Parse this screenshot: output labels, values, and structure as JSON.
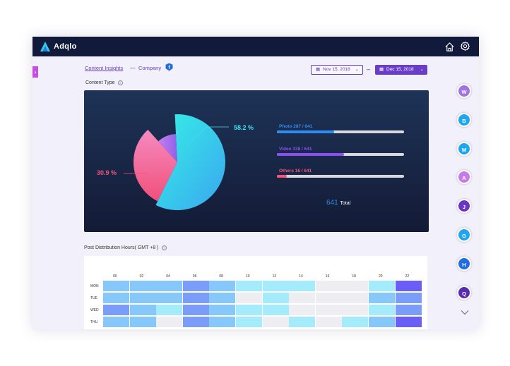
{
  "app": {
    "brand": "Adqlo"
  },
  "tabs": {
    "insights": "Content Insights",
    "separator": "—",
    "company": "Company"
  },
  "date_range": {
    "start": "Nov 15, 2018",
    "separator": "–",
    "end": "Dec 15, 2018"
  },
  "content_type": {
    "title": "Content Type",
    "total_value": "641",
    "total_label": "Total"
  },
  "chart_data": {
    "type": "pie",
    "slices": [
      {
        "label": "Photo",
        "value": 58.2,
        "color": "#2fe6e6"
      },
      {
        "label": "Others",
        "value": 30.9,
        "color": "#f2557b"
      },
      {
        "label": "Video",
        "value": 10.9,
        "color": "#9b6fe8"
      }
    ],
    "labels": {
      "large": "58.2 %",
      "medium": "30.9 %"
    },
    "bars": [
      {
        "label": "Photo 287 / 641",
        "fraction": 0.45,
        "color": "#2d8df0"
      },
      {
        "label": "Video 338 / 641",
        "fraction": 0.53,
        "color": "#8a4ff0"
      },
      {
        "label": "Others 16 / 641",
        "fraction": 0.08,
        "color": "#f2557b"
      }
    ]
  },
  "post_distribution": {
    "title": "Post Distribution Hours( GMT +8 )",
    "hours": [
      "00",
      "02",
      "04",
      "06",
      "08",
      "10",
      "12",
      "14",
      "16",
      "18",
      "20",
      "22"
    ],
    "days": [
      "MON",
      "TUE",
      "WED",
      "THU"
    ],
    "intensity": [
      [
        2,
        2,
        2,
        3,
        2,
        1,
        1,
        1,
        0,
        0,
        1,
        4
      ],
      [
        2,
        2,
        2,
        3,
        2,
        0,
        1,
        0,
        0,
        0,
        2,
        3
      ],
      [
        3,
        2,
        1,
        3,
        2,
        1,
        1,
        0,
        0,
        0,
        1,
        3
      ],
      [
        2,
        2,
        0,
        3,
        2,
        1,
        0,
        1,
        0,
        1,
        2,
        4
      ]
    ],
    "palette": [
      "#eeeef2",
      "#a4ecfb",
      "#86c8fa",
      "#7b9dfa",
      "#6a5ef6"
    ]
  },
  "avatars": [
    {
      "letter": "W",
      "color": "#a072e6"
    },
    {
      "letter": "B",
      "color": "#1fa6f0"
    },
    {
      "letter": "M",
      "color": "#1fa6f0"
    },
    {
      "letter": "A",
      "color": "#c77ae8"
    },
    {
      "letter": "J",
      "color": "#6a35c4"
    },
    {
      "letter": "G",
      "color": "#1fa6f0"
    },
    {
      "letter": "H",
      "color": "#1f6ee0"
    },
    {
      "letter": "Q",
      "color": "#5a2bb0"
    }
  ]
}
